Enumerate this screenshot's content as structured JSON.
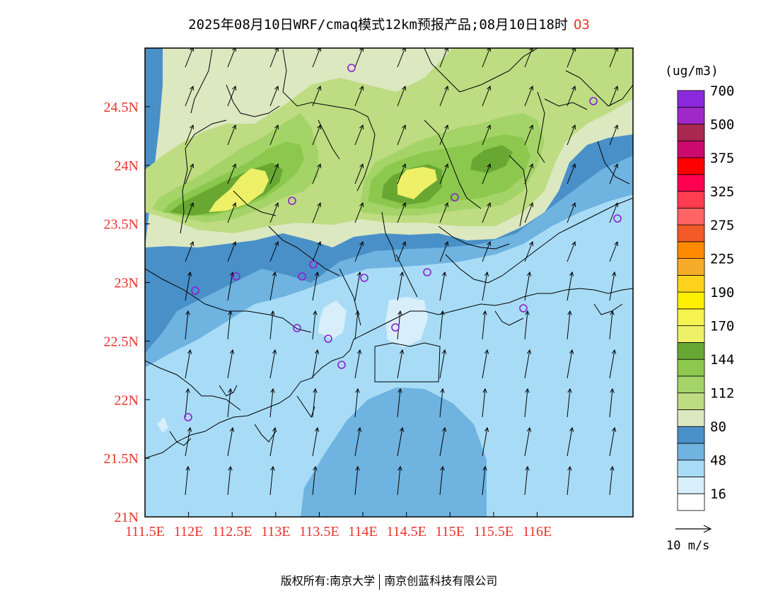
{
  "title": {
    "main": "2025年08月10日WRF/cmaq模式12km预报产品;08月10日18时",
    "species": "O3"
  },
  "axes": {
    "x_ticks": [
      "111.5E",
      "112E",
      "112.5E",
      "113E",
      "113.5E",
      "114E",
      "114.5E",
      "115E",
      "115.5E",
      "116E"
    ],
    "y_ticks": [
      "21N",
      "21.5N",
      "22N",
      "22.5N",
      "23N",
      "23.5N",
      "24N",
      "24.5N"
    ],
    "lon_range": [
      111.5,
      117.1
    ],
    "lat_range": [
      21.0,
      25.0
    ],
    "tick_color": "#e8322b"
  },
  "colorbar": {
    "unit": "(ug/m3)",
    "labels": [
      "16",
      "48",
      "80",
      "112",
      "144",
      "170",
      "190",
      "225",
      "275",
      "325",
      "375",
      "500",
      "700"
    ],
    "colors": [
      "#ffffff",
      "#d8eefb",
      "#a8dcf6",
      "#6fb3e0",
      "#4a90c8",
      "#dce8c0",
      "#bedc82",
      "#a4d468",
      "#8cc84e",
      "#68a832",
      "#eef068",
      "#f6f250",
      "#ffef00",
      "#ffd21e",
      "#f6ac28",
      "#ff8a00",
      "#f25a28",
      "#ff6464",
      "#ff3c50",
      "#ff0050",
      "#ff0000",
      "#cc0a6e",
      "#aa2850",
      "#a028c8",
      "#8c28dc"
    ]
  },
  "vector_key": {
    "label": "10 m/s"
  },
  "footer": {
    "left": "版权所有:南京大学",
    "right": "南京创蓝科技有限公司"
  }
}
